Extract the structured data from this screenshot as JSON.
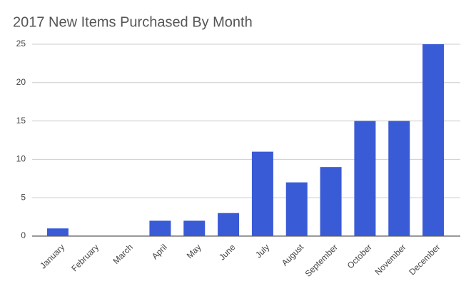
{
  "chart_data": {
    "type": "bar",
    "title": "2017 New Items Purchased By Month",
    "categories": [
      "January",
      "February",
      "March",
      "April",
      "May",
      "June",
      "July",
      "August",
      "September",
      "October",
      "November",
      "December"
    ],
    "values": [
      1,
      0,
      0,
      2,
      2,
      3,
      11,
      7,
      9,
      15,
      15,
      25
    ],
    "color": "#3a5bd6",
    "ylim": [
      0,
      25
    ],
    "yticks": [
      0,
      5,
      10,
      15,
      20,
      25
    ],
    "grid": true
  }
}
